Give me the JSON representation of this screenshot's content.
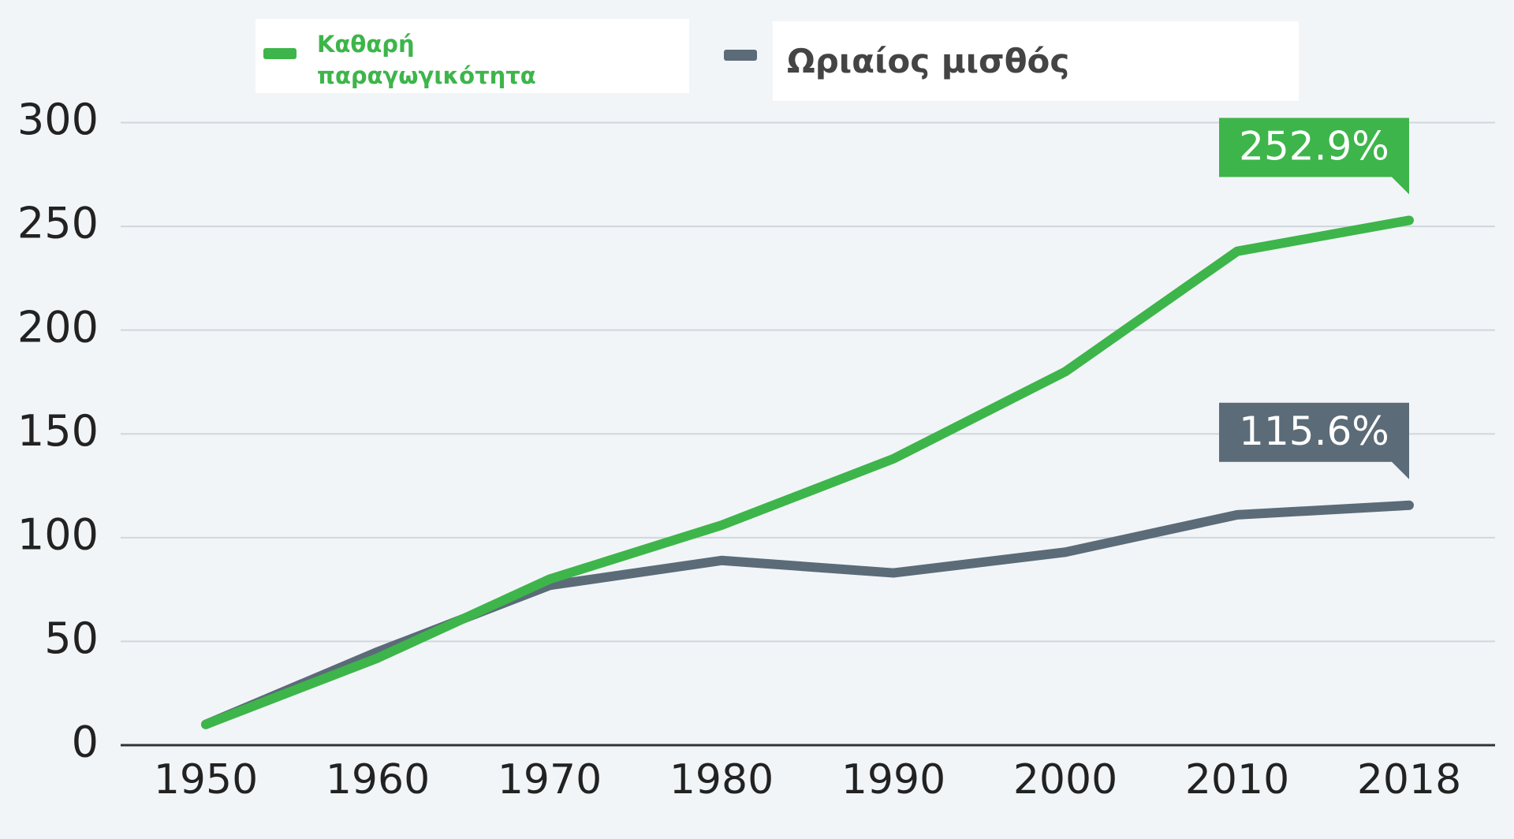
{
  "chart_data": {
    "type": "line",
    "categories": [
      "1950",
      "1960",
      "1970",
      "1980",
      "1990",
      "2000",
      "2010",
      "2018"
    ],
    "series": [
      {
        "name": "Καθαρή παραγωγικότητα",
        "color": "#3db54a",
        "values": [
          10,
          42,
          80,
          106,
          138,
          180,
          238,
          252.9
        ],
        "value_labels": [
          null,
          null,
          null,
          null,
          null,
          null,
          null,
          "252.9%"
        ]
      },
      {
        "name": "Ωριαίος μισθός",
        "color": "#5b6b78",
        "values": [
          10,
          45,
          77,
          89,
          83,
          93,
          111,
          115.6
        ],
        "value_labels": [
          null,
          null,
          null,
          null,
          null,
          null,
          null,
          "115.6%"
        ]
      }
    ],
    "ylim": [
      0,
      300
    ],
    "yticks": [
      0,
      50,
      100,
      150,
      200,
      250,
      300
    ],
    "grid": true
  }
}
